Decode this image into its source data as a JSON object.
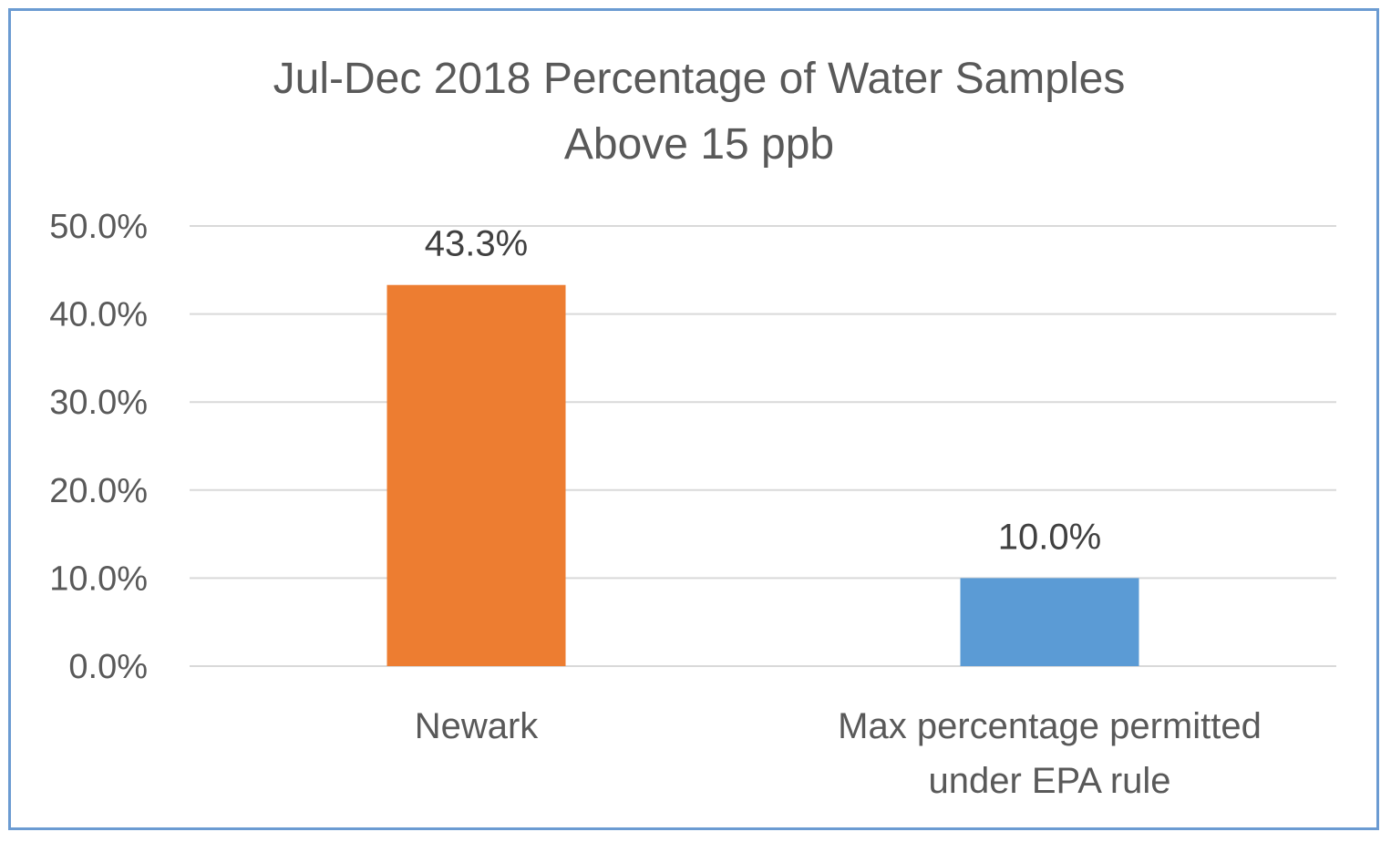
{
  "chart_data": {
    "type": "bar",
    "title": [
      "Jul-Dec 2018 Percentage of Water Samples",
      "Above 15 ppb"
    ],
    "xlabel": "",
    "ylabel": "",
    "ylim": [
      0,
      50
    ],
    "yticks": [
      0,
      10,
      20,
      30,
      40,
      50
    ],
    "ytick_labels": [
      "0.0%",
      "10.0%",
      "20.0%",
      "30.0%",
      "40.0%",
      "50.0%"
    ],
    "categories": [
      [
        "Newark"
      ],
      [
        "Max percentage permitted",
        "under EPA rule"
      ]
    ],
    "values": [
      43.3,
      10.0
    ],
    "value_labels": [
      "43.3%",
      "10.0%"
    ],
    "colors": [
      "#ed7d31",
      "#5b9bd5"
    ],
    "grid": true,
    "legend": "none"
  }
}
